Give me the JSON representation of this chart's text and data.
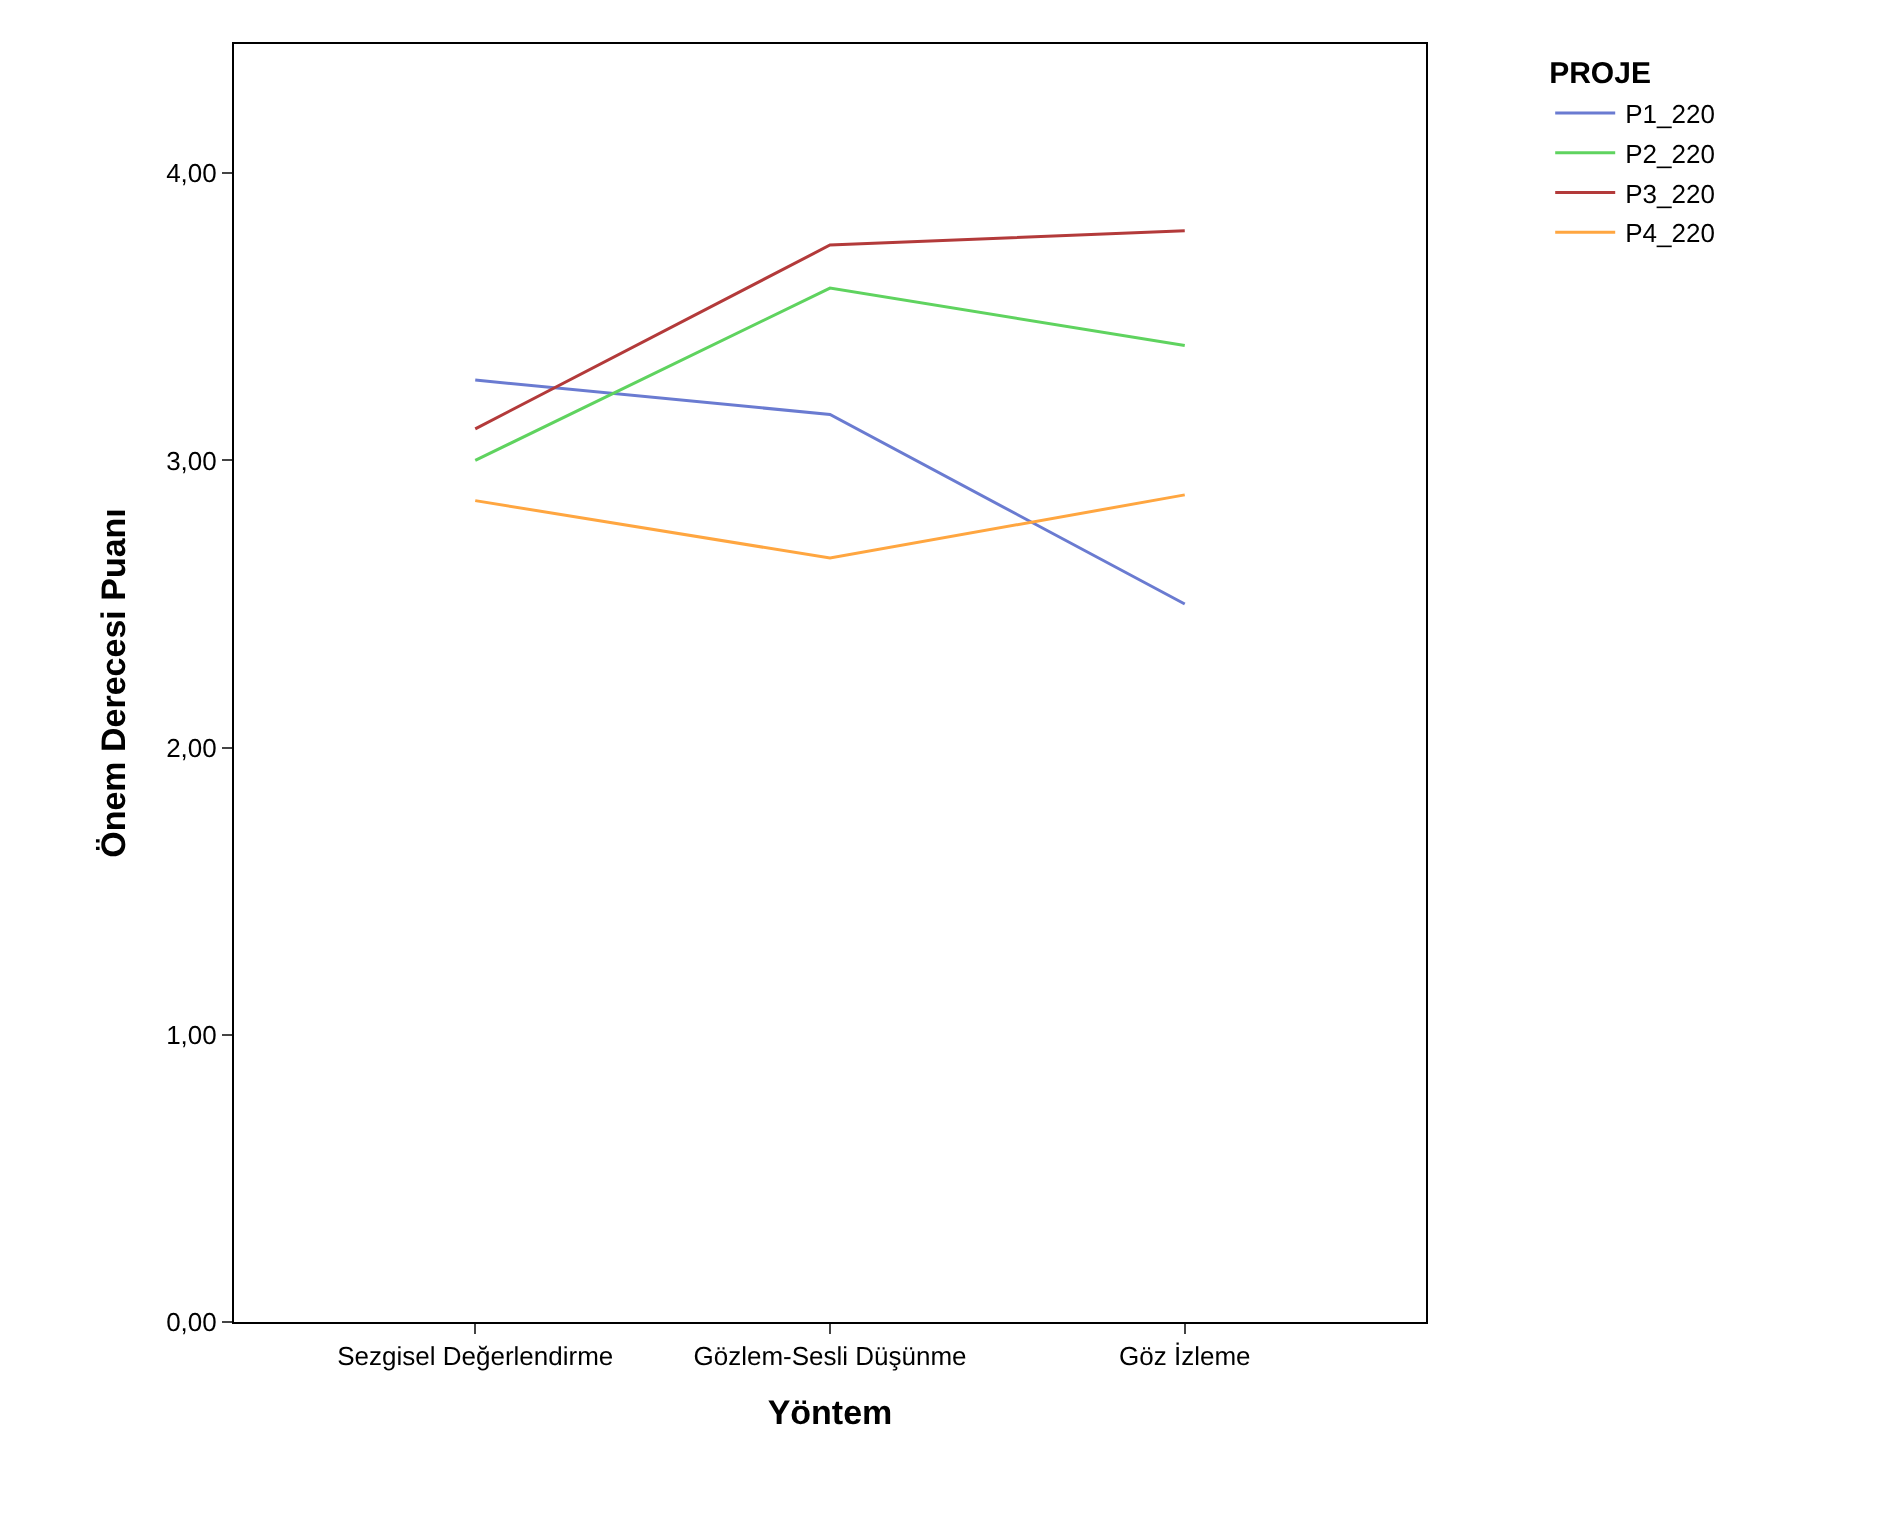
{
  "chart_data": {
    "type": "line",
    "xlabel": "Yöntem",
    "ylabel": "Önem Derecesi Puanı",
    "legend_title": "PROJE",
    "legend": "top right",
    "categories": [
      "Sezgisel Değerlendirme",
      "Gözlem-Sesli Düşünme",
      "Göz İzleme"
    ],
    "ylim": [
      0,
      4.45
    ],
    "yticks": [
      {
        "value": 0,
        "label": "0,00"
      },
      {
        "value": 1,
        "label": "1,00"
      },
      {
        "value": 2,
        "label": "2,00"
      },
      {
        "value": 3,
        "label": "3,00"
      },
      {
        "value": 4,
        "label": "4,00"
      }
    ],
    "marker": "none",
    "line_style": "solid",
    "series": [
      {
        "name": "P1_220",
        "color": "#6a7bd1",
        "values": [
          3.28,
          3.16,
          2.5
        ]
      },
      {
        "name": "P2_220",
        "color": "#5fd35f",
        "values": [
          3.0,
          3.6,
          3.4
        ]
      },
      {
        "name": "P3_220",
        "color": "#b33a3a",
        "values": [
          3.11,
          3.75,
          3.8
        ]
      },
      {
        "name": "P4_220",
        "color": "#ffa640",
        "values": [
          2.86,
          2.66,
          2.88
        ]
      }
    ]
  }
}
